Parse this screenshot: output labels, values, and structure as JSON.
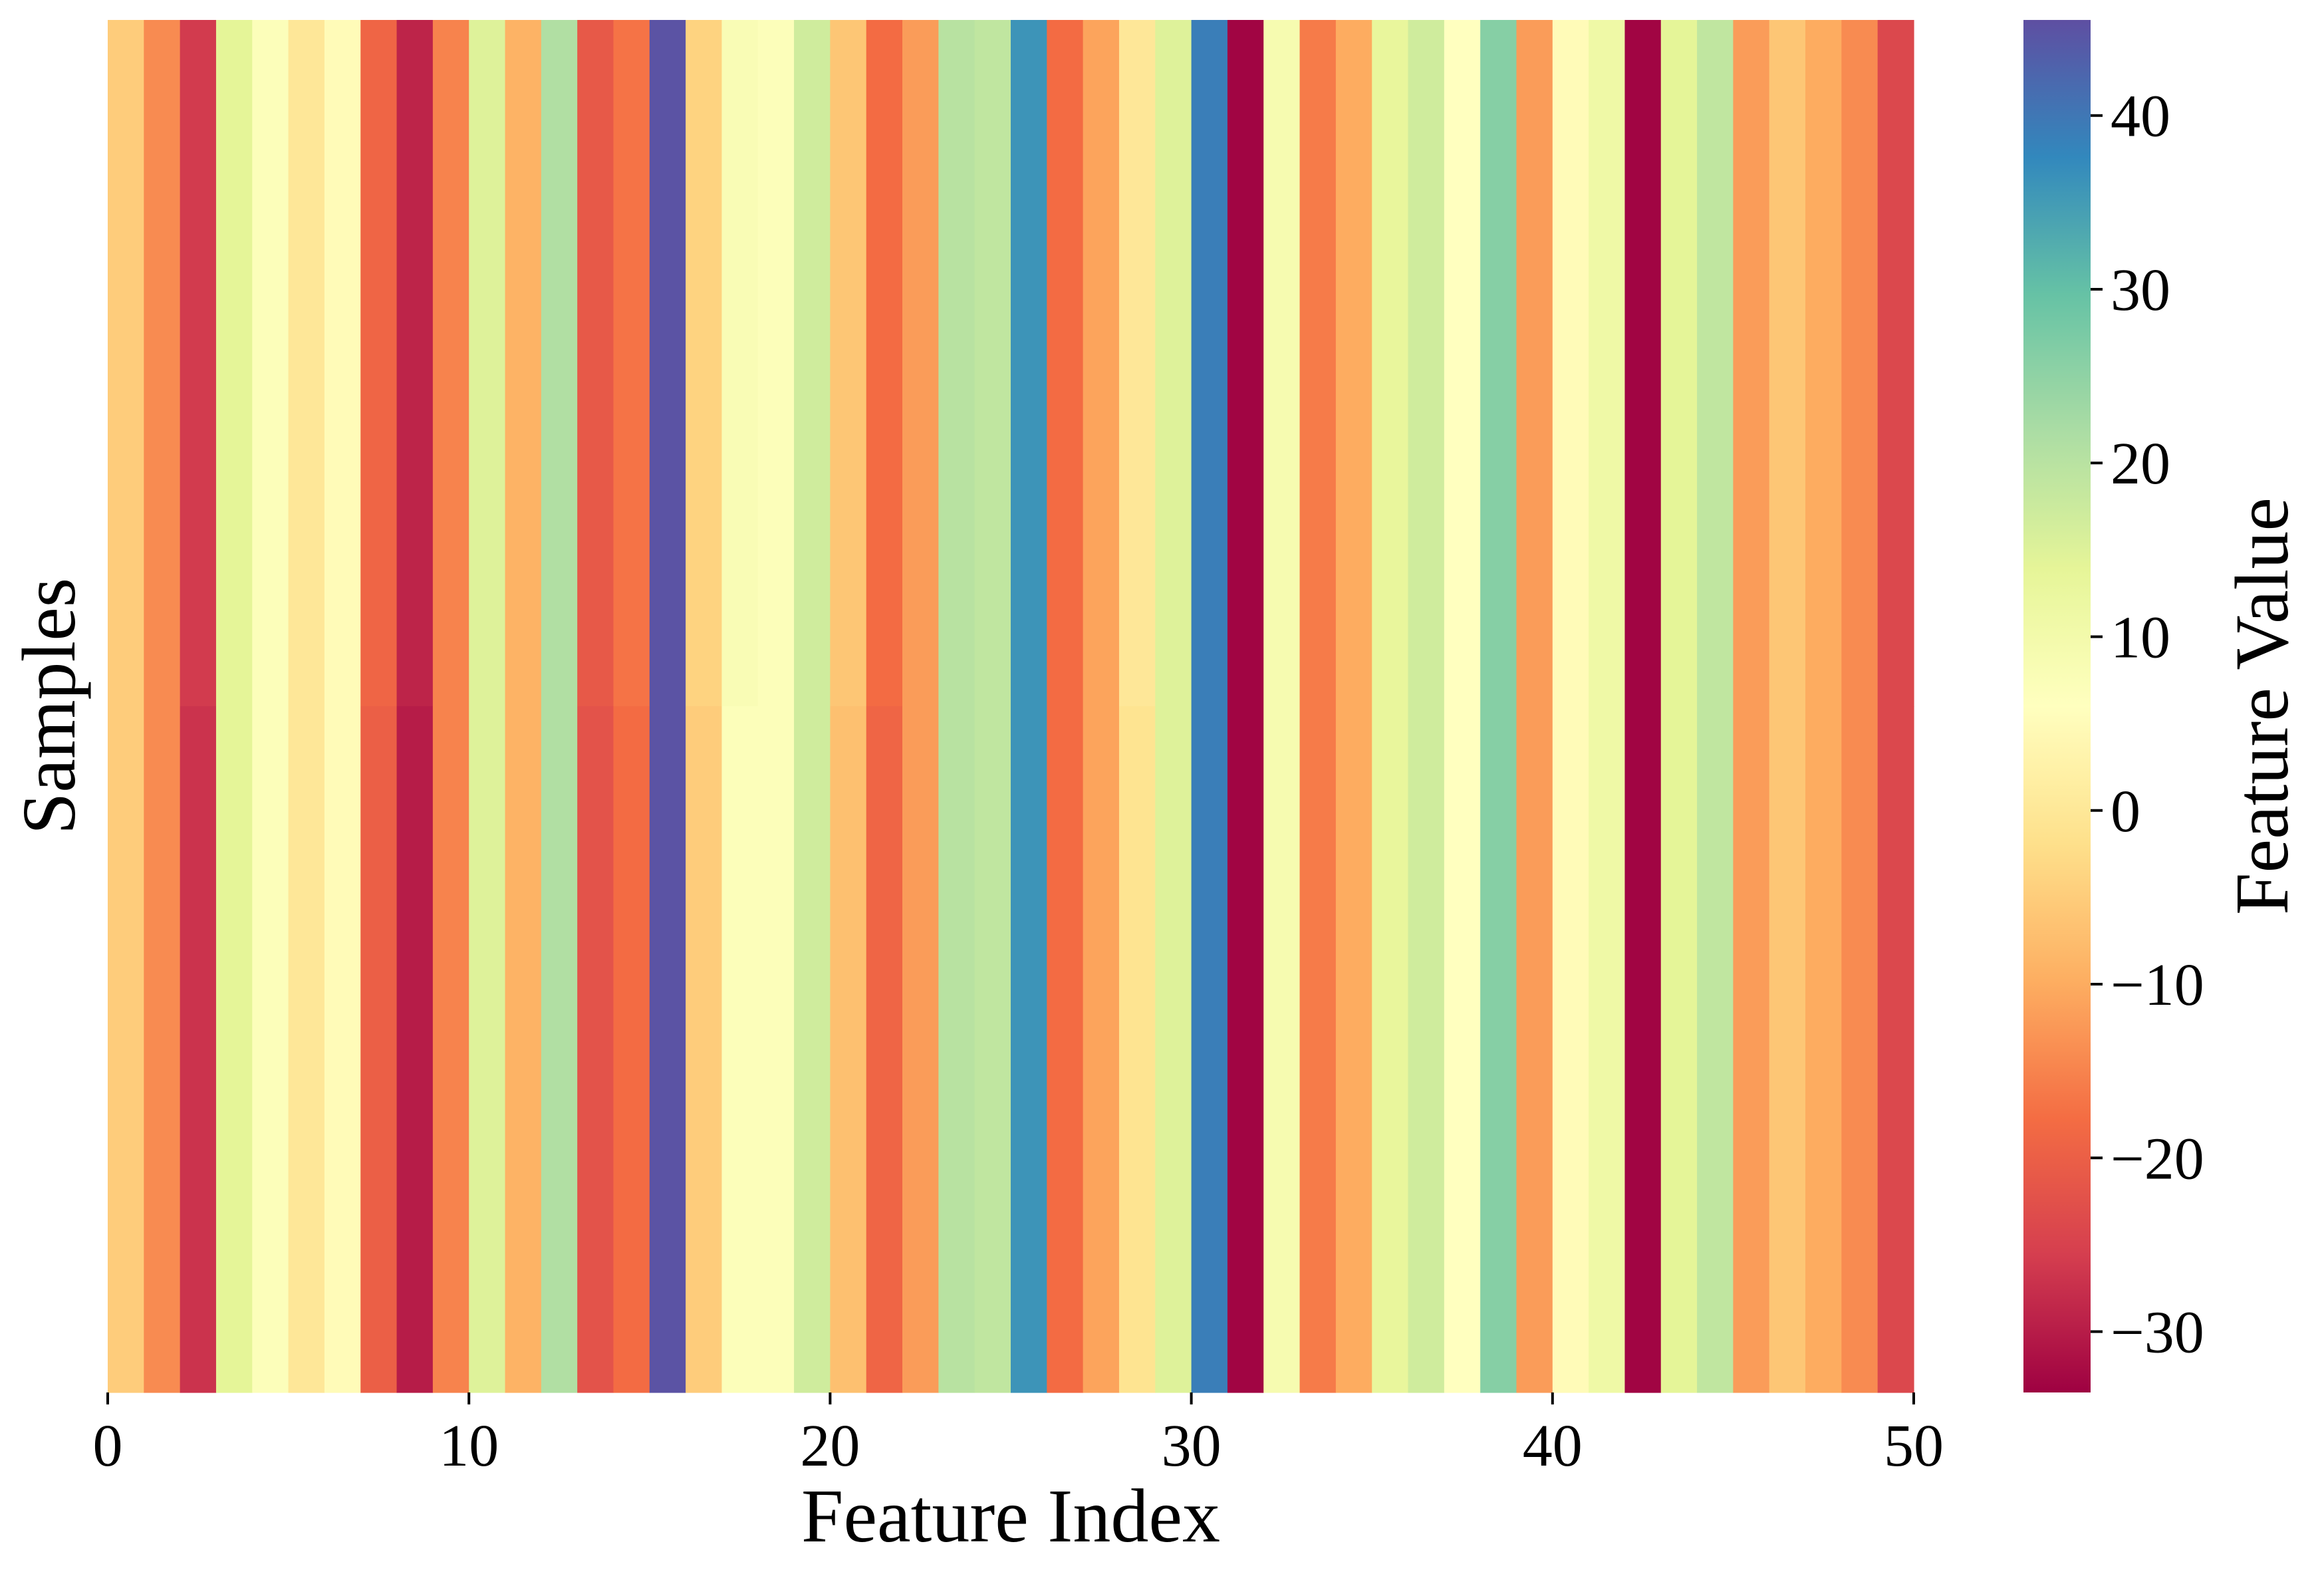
{
  "chart_data": {
    "type": "heatmap",
    "title": "",
    "xlabel": "Feature Index",
    "ylabel": "Samples",
    "colorbar_label": "Feature Value",
    "colormap": "Spectral",
    "x_range": [
      0,
      50
    ],
    "x_ticks": [
      0,
      10,
      20,
      30,
      40,
      50
    ],
    "colorbar_range": [
      -33.5,
      45.5
    ],
    "colorbar_ticks": [
      -30,
      -20,
      -10,
      0,
      10,
      20,
      30,
      40
    ],
    "rows": [
      {
        "values": [
          -5,
          -14,
          -26,
          14,
          7,
          0,
          5,
          -19,
          -29,
          -15,
          15,
          -9,
          21,
          -21,
          -17,
          45,
          -4,
          8,
          7,
          17,
          -6,
          -18,
          -12,
          20,
          19,
          36,
          -18,
          -11,
          0,
          15,
          39,
          -33,
          9,
          -16,
          -10,
          13,
          17,
          6,
          26,
          -12,
          5,
          11,
          -33,
          14,
          19,
          -12,
          -6,
          -10,
          -14,
          -24
        ]
      },
      {
        "values": [
          -5,
          -14,
          -27,
          14,
          7,
          0,
          5,
          -20,
          -30,
          -15,
          15,
          -9,
          21,
          -22,
          -18,
          45,
          -5,
          7,
          7,
          17,
          -7,
          -19,
          -12,
          20,
          19,
          36,
          -18,
          -11,
          -1,
          15,
          39,
          -33,
          9,
          -16,
          -10,
          13,
          17,
          6,
          26,
          -12,
          5,
          11,
          -33,
          14,
          19,
          -12,
          -6,
          -10,
          -14,
          -24
        ]
      }
    ]
  }
}
